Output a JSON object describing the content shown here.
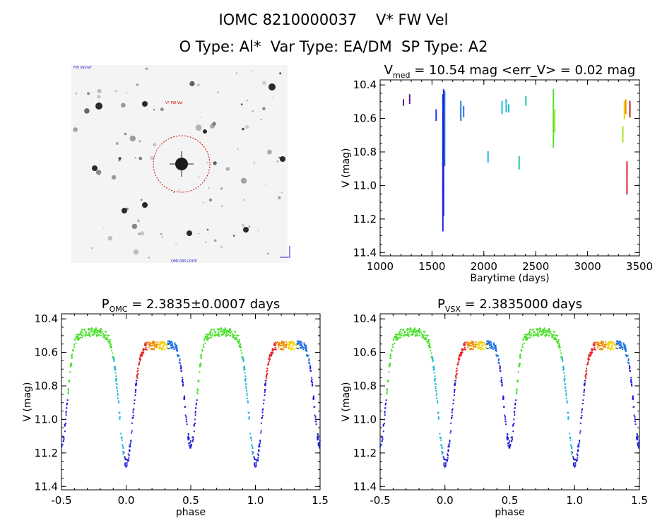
{
  "header": {
    "title_line1": "IOMC 8210000037    V* FW Vel",
    "title_line2": "O Type: Al*  Var Type: EA/DM  SP Type: A2"
  },
  "image_panel": {
    "label_top": "FW Vel/ref",
    "label_marker": "V* FW Vel",
    "label_bottom": "OMC/IRS LOOP"
  },
  "colors": {
    "axis": "#000000",
    "circle": "#d00000",
    "palette": [
      "#5a0a8a",
      "#2020d8",
      "#1e6fe0",
      "#15b8d8",
      "#12c4a0",
      "#4ae02a",
      "#a8e020",
      "#f0d000",
      "#f08a00",
      "#e02020",
      "#b81818"
    ]
  },
  "chart_data": [
    {
      "type": "scatter",
      "name": "lightcurve",
      "title_main": "V",
      "title_sub": "med",
      "title_rest": " = 10.54 mag <err_V> = 0.02 mag",
      "xlabel": "Barytime (days)",
      "ylabel": "V (mag)",
      "xlim": [
        1000,
        3500
      ],
      "ylim": [
        11.42,
        10.37
      ],
      "xticks": [
        1000,
        1500,
        2000,
        2500,
        3000,
        3500
      ],
      "yticks": [
        "10.4",
        "10.6",
        "10.8",
        "11.0",
        "11.2",
        "11.4"
      ],
      "segments": [
        {
          "x": 1225,
          "y0": 10.49,
          "y1": 10.52,
          "color_index": 0
        },
        {
          "x": 1285,
          "y0": 10.46,
          "y1": 10.51,
          "color_index": 0
        },
        {
          "x": 1540,
          "y0": 10.55,
          "y1": 10.61,
          "color_index": 1
        },
        {
          "x": 1605,
          "y0": 10.46,
          "y1": 11.27,
          "color_index": 1
        },
        {
          "x": 1612,
          "y0": 10.43,
          "y1": 11.18,
          "color_index": 1
        },
        {
          "x": 1622,
          "y0": 10.44,
          "y1": 10.88,
          "color_index": 2
        },
        {
          "x": 1778,
          "y0": 10.5,
          "y1": 10.61,
          "color_index": 2
        },
        {
          "x": 1805,
          "y0": 10.53,
          "y1": 10.59,
          "color_index": 2
        },
        {
          "x": 2040,
          "y0": 10.8,
          "y1": 10.86,
          "color_index": 3
        },
        {
          "x": 2175,
          "y0": 10.5,
          "y1": 10.57,
          "color_index": 3
        },
        {
          "x": 2215,
          "y0": 10.49,
          "y1": 10.56,
          "color_index": 3
        },
        {
          "x": 2240,
          "y0": 10.52,
          "y1": 10.56,
          "color_index": 3
        },
        {
          "x": 2340,
          "y0": 10.83,
          "y1": 10.9,
          "color_index": 4
        },
        {
          "x": 2405,
          "y0": 10.47,
          "y1": 10.52,
          "color_index": 4
        },
        {
          "x": 2670,
          "y0": 10.43,
          "y1": 10.77,
          "color_index": 5
        },
        {
          "x": 2683,
          "y0": 10.55,
          "y1": 10.68,
          "color_index": 6
        },
        {
          "x": 3340,
          "y0": 10.65,
          "y1": 10.74,
          "color_index": 6
        },
        {
          "x": 3355,
          "y0": 10.5,
          "y1": 10.6,
          "color_index": 7
        },
        {
          "x": 3368,
          "y0": 10.49,
          "y1": 10.57,
          "color_index": 8
        },
        {
          "x": 3380,
          "y0": 10.86,
          "y1": 11.05,
          "color_index": 9
        },
        {
          "x": 3408,
          "y0": 10.5,
          "y1": 10.59,
          "color_index": 10
        }
      ]
    },
    {
      "type": "scatter",
      "name": "phase_omc",
      "title_main": "P",
      "title_sub": "OMC",
      "title_rest": " = 2.3835±0.0007 days",
      "xlabel": "phase",
      "ylabel": "V (mag)",
      "xlim": [
        -0.5,
        1.5
      ],
      "ylim": [
        11.42,
        10.37
      ],
      "xticks": [
        "-0.5",
        "0.0",
        "0.5",
        "1.0",
        "1.5"
      ],
      "yticks": [
        "10.4",
        "10.6",
        "10.8",
        "11.0",
        "11.2",
        "11.4"
      ],
      "lightcurve": {
        "max": 10.52,
        "primary_min": 11.26,
        "primary_width": 0.075,
        "secondary_min": 11.15,
        "secondary_width": 0.065
      }
    },
    {
      "type": "scatter",
      "name": "phase_vsx",
      "title_main": "P",
      "title_sub": "VSX",
      "title_rest": " = 2.3835000 days",
      "xlabel": "phase",
      "ylabel": "V (mag)",
      "xlim": [
        -0.5,
        1.5
      ],
      "ylim": [
        11.42,
        10.37
      ],
      "xticks": [
        "-0.5",
        "0.0",
        "0.5",
        "1.0",
        "1.5"
      ],
      "yticks": [
        "10.4",
        "10.6",
        "10.8",
        "11.0",
        "11.2",
        "11.4"
      ],
      "lightcurve": {
        "max": 10.52,
        "primary_min": 11.26,
        "primary_width": 0.075,
        "secondary_min": 11.15,
        "secondary_width": 0.065
      }
    }
  ]
}
